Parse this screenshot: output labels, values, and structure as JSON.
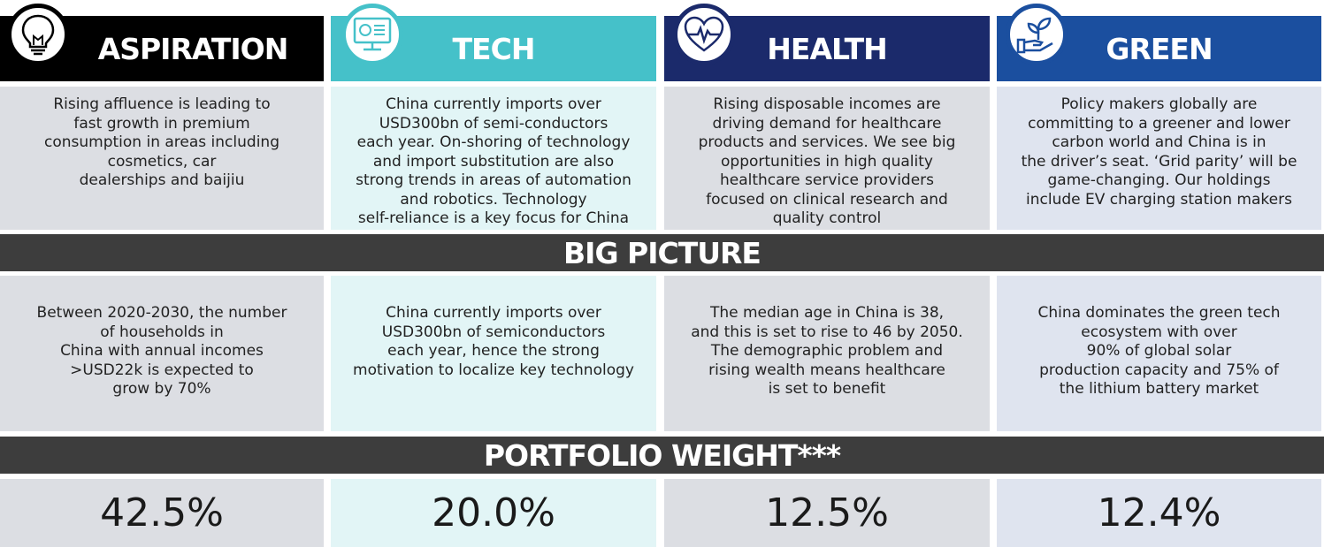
{
  "columns": [
    {
      "key": "aspiration",
      "title": "ASPIRATION",
      "icon": "lightbulb-icon",
      "description": "Rising affluence is leading to\nfast growth in premium\nconsumption in areas including\ncosmetics, car\ndealerships and baijiu",
      "big_picture": "Between 2020-2030, the number\nof households in\nChina with annual incomes\n>USD22k is expected to\ngrow by 70%",
      "weight": "42.5%"
    },
    {
      "key": "tech",
      "title": "TECH",
      "icon": "monitor-icon",
      "description": "China currently imports over\nUSD300bn of semi-conductors\neach year. On-shoring of technology\nand import substitution are also\nstrong trends in areas of automation\nand robotics. Technology\nself-reliance is a key focus for China",
      "big_picture": "China currently imports over\nUSD300bn of semiconductors\neach year, hence the strong\nmotivation to localize key technology",
      "weight": "20.0%"
    },
    {
      "key": "health",
      "title": "HEALTH",
      "icon": "heart-pulse-icon",
      "description": "Rising disposable incomes are\ndriving demand for healthcare\nproducts and services. We see big\nopportunities in high quality\nhealthcare service providers\nfocused on clinical research and\nquality control",
      "big_picture": "The median age in China is 38,\nand this is set to rise to 46 by 2050.\nThe demographic problem and\nrising wealth means healthcare\nis set to benefit",
      "weight": "12.5%"
    },
    {
      "key": "green",
      "title": "GREEN",
      "icon": "hand-plant-icon",
      "description": "Policy makers globally are\ncommitting to a greener and lower\ncarbon world and China is in\nthe driver’s seat. ‘Grid parity’ will be\ngame-changing.  Our holdings\ninclude EV charging station makers",
      "big_picture": "China dominates the green tech\necosystem with over\n90% of global solar\nproduction capacity and 75% of\nthe lithium battery market",
      "weight": "12.4%"
    }
  ],
  "bands": {
    "big_picture": "BIG PICTURE",
    "portfolio_weight": "PORTFOLIO WEIGHT***"
  },
  "colors": {
    "aspiration": "#000000",
    "tech": "#45c1c9",
    "health": "#1b2a6b",
    "green": "#1b4f9f",
    "band": "#3d3d3d"
  }
}
